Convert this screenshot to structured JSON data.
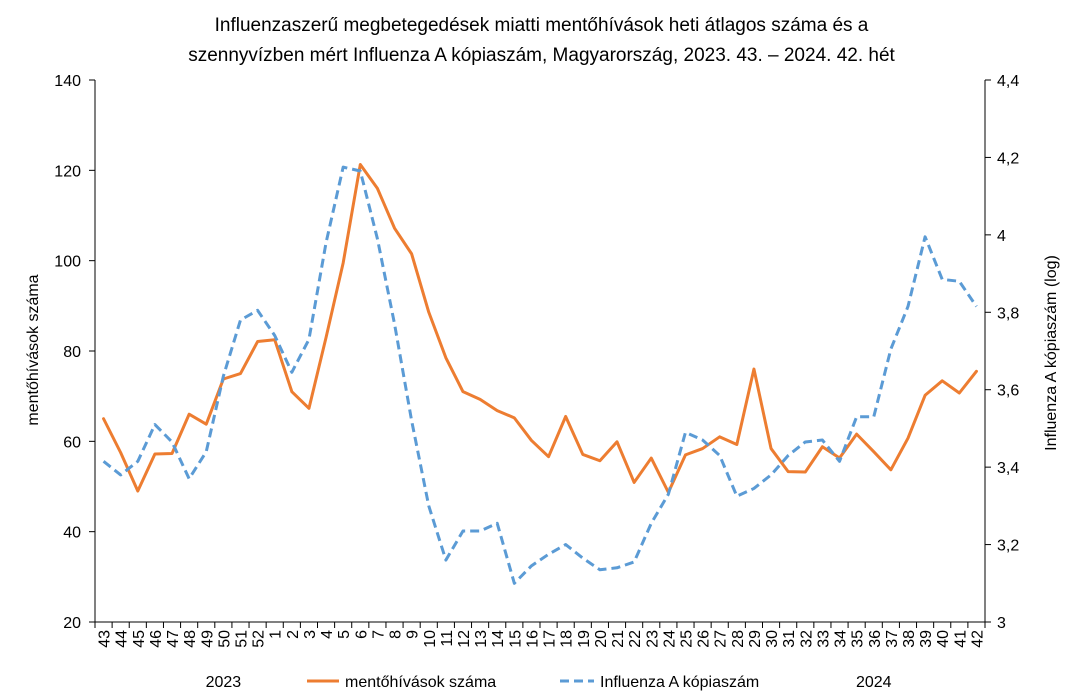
{
  "chart_data": {
    "type": "line",
    "title": [
      "Influenzaszerű megbetegedések miatti mentőhívások heti átlagos száma és a",
      "szennyvízben mért Influenza A kópiaszám, Magyarország, 2023. 43. – 2024. 42. hét"
    ],
    "categories": [
      "43",
      "44",
      "45",
      "46",
      "47",
      "48",
      "49",
      "50",
      "51",
      "52",
      "1",
      "2",
      "3",
      "4",
      "5",
      "6",
      "7",
      "8",
      "9",
      "10",
      "11",
      "12",
      "13",
      "14",
      "15",
      "16",
      "17",
      "18",
      "19",
      "20",
      "21",
      "22",
      "23",
      "24",
      "25",
      "26",
      "27",
      "28",
      "29",
      "30",
      "31",
      "32",
      "33",
      "34",
      "35",
      "36",
      "37",
      "38",
      "39",
      "40",
      "41",
      "42"
    ],
    "year_labels": [
      {
        "text": "2023",
        "category": "50"
      },
      {
        "text": "2024",
        "category": "36"
      }
    ],
    "ylabel_left": "mentőhívások száma",
    "ylabel_right": "Influenza A kópiaszám (log)",
    "ylim_left": [
      20,
      140
    ],
    "yticks_left": [
      20,
      40,
      60,
      80,
      100,
      120,
      140
    ],
    "yticks_left_labels": [
      "20",
      "40",
      "60",
      "80",
      "100",
      "120",
      "140"
    ],
    "ylim_right": [
      3,
      4.4
    ],
    "yticks_right": [
      3,
      3.2,
      3.4,
      3.6,
      3.8,
      4,
      4.2,
      4.4
    ],
    "yticks_right_labels": [
      "3",
      "3,2",
      "3,4",
      "3,6",
      "3,8",
      "4",
      "4,2",
      "4,4"
    ],
    "grid": false,
    "legend_position": "bottom",
    "series": [
      {
        "name": "mentőhívások száma",
        "axis": "left",
        "color": "#ED7D31",
        "style": "solid",
        "values": [
          65,
          57.5,
          49,
          57.2,
          57.3,
          66,
          63.8,
          73.8,
          75,
          82.1,
          82.5,
          71,
          67.3,
          83,
          99.5,
          121.3,
          116,
          107.2,
          101.5,
          88.6,
          78.5,
          71,
          69.3,
          66.8,
          65.2,
          60.2,
          56.6,
          65.5,
          57.1,
          55.7,
          59.9,
          50.9,
          56.3,
          48.7,
          57,
          58.4,
          61,
          59.3,
          76,
          58.4,
          53.3,
          53.2,
          58.8,
          56.3,
          61.6,
          57.7,
          53.7,
          60.7,
          70.2,
          73.4,
          70.7,
          75.5
        ]
      },
      {
        "name": "Influenza A kópiaszám",
        "axis": "right",
        "color": "#5B9BD5",
        "style": "dashed",
        "values": [
          3.415,
          3.38,
          3.415,
          3.51,
          3.465,
          3.37,
          3.44,
          3.635,
          3.78,
          3.805,
          3.74,
          3.645,
          3.73,
          3.98,
          4.175,
          4.165,
          3.99,
          3.77,
          3.52,
          3.3,
          3.16,
          3.235,
          3.235,
          3.255,
          3.1,
          3.145,
          3.175,
          3.2,
          3.165,
          3.135,
          3.14,
          3.155,
          3.255,
          3.33,
          3.49,
          3.47,
          3.43,
          3.325,
          3.345,
          3.38,
          3.43,
          3.465,
          3.47,
          3.415,
          3.53,
          3.53,
          3.705,
          3.815,
          3.995,
          3.885,
          3.88,
          3.815
        ]
      }
    ]
  }
}
